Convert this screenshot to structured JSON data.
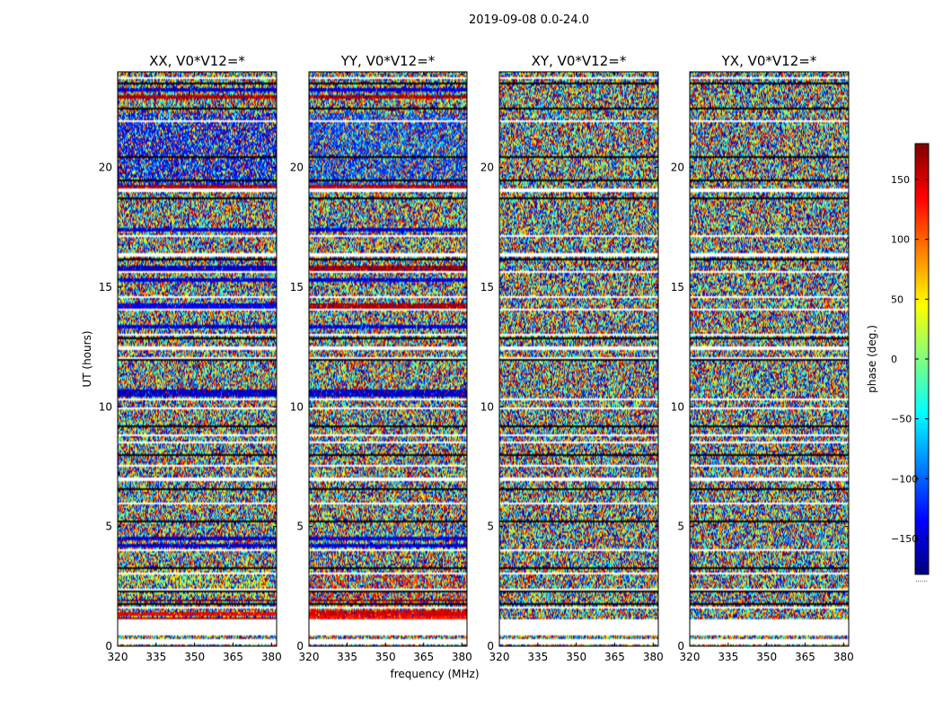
{
  "figure": {
    "suptitle": "2019-09-08 0.0-24.0",
    "xlabel": "frequency (MHz)",
    "ylabel": "UT (hours)",
    "colorbar_label": "phase (deg.)"
  },
  "chart_data": {
    "type": "heatmap",
    "description_kind": "dynamic phase spectra, frequency vs UT time",
    "x_axis": {
      "label": "frequency (MHz)",
      "range": [
        320,
        382
      ],
      "ticks": [
        320,
        335,
        350,
        365,
        380
      ]
    },
    "y_axis": {
      "label": "UT (hours)",
      "range": [
        0,
        24
      ],
      "ticks": [
        0,
        5,
        10,
        15,
        20
      ]
    },
    "colorbar": {
      "label": "phase (deg.)",
      "range": [
        -180,
        180
      ],
      "ticks": [
        -150,
        -100,
        -50,
        0,
        50,
        100,
        150
      ],
      "colormap": "jet",
      "colormap_stops": [
        "#00007f",
        "#0000ff",
        "#007fff",
        "#00ffff",
        "#7fff7f",
        "#ffff00",
        "#ff7f00",
        "#ff0000",
        "#7f0000"
      ]
    },
    "panels": [
      {
        "title": "XX, V0*V12=*",
        "flagged_bands_hours": [
          [
            1.0,
            1.1
          ],
          [
            6.9,
            7.05
          ],
          [
            8.45,
            8.55
          ],
          [
            10.25,
            10.35
          ],
          [
            12.4,
            12.5
          ],
          [
            14.0,
            14.1
          ],
          [
            16.3,
            16.45
          ],
          [
            17.1,
            17.2
          ],
          [
            18.95,
            19.1
          ]
        ],
        "coherent_bands": [
          {
            "range": [
              1.05,
              1.2
            ],
            "phase": 160
          },
          {
            "range": [
              1.3,
              1.45
            ],
            "phase": 140
          },
          {
            "range": [
              1.85,
              1.95
            ],
            "phase": 175
          },
          {
            "range": [
              4.1,
              4.3
            ],
            "phase": -150
          },
          {
            "range": [
              4.4,
              4.55
            ],
            "phase": -155
          },
          {
            "range": [
              10.45,
              10.7
            ],
            "phase": -155
          },
          {
            "range": [
              13.3,
              13.45
            ],
            "phase": -150
          },
          {
            "range": [
              14.1,
              14.3
            ],
            "phase": -140
          },
          {
            "range": [
              15.2,
              15.35
            ],
            "phase": -150
          },
          {
            "range": [
              15.7,
              15.9
            ],
            "phase": -155
          },
          {
            "range": [
              17.35,
              17.45
            ],
            "phase": -150
          },
          {
            "range": [
              19.15,
              19.3
            ],
            "phase": 165
          },
          {
            "range": [
              22.9,
              23.05
            ],
            "phase": 165
          },
          {
            "range": [
              23.2,
              23.35
            ],
            "phase": -155
          }
        ],
        "noise_bias": [
          {
            "range": [
              19.3,
              22.3
            ],
            "phase": -130,
            "strength": 0.45
          },
          {
            "range": [
              2.1,
              3.2
            ],
            "phase": 30,
            "strength": 0.2
          }
        ]
      },
      {
        "title": "YY, V0*V12=*",
        "flagged_bands_hours": [
          [
            1.0,
            1.1
          ],
          [
            6.9,
            7.05
          ],
          [
            8.45,
            8.55
          ],
          [
            10.25,
            10.35
          ],
          [
            12.4,
            12.5
          ],
          [
            14.0,
            14.1
          ],
          [
            16.3,
            16.45
          ],
          [
            17.1,
            17.2
          ],
          [
            18.95,
            19.1
          ]
        ],
        "coherent_bands": [
          {
            "range": [
              1.05,
              1.25
            ],
            "phase": 130
          },
          {
            "range": [
              1.3,
              1.5
            ],
            "phase": 150
          },
          {
            "range": [
              1.85,
              1.95
            ],
            "phase": 170
          },
          {
            "range": [
              4.1,
              4.3
            ],
            "phase": -150
          },
          {
            "range": [
              4.4,
              4.55
            ],
            "phase": -145
          },
          {
            "range": [
              10.45,
              10.7
            ],
            "phase": -155
          },
          {
            "range": [
              13.3,
              13.45
            ],
            "phase": -145
          },
          {
            "range": [
              14.1,
              14.3
            ],
            "phase": 165
          },
          {
            "range": [
              15.2,
              15.35
            ],
            "phase": -150
          },
          {
            "range": [
              15.7,
              15.9
            ],
            "phase": 170
          },
          {
            "range": [
              17.35,
              17.45
            ],
            "phase": -150
          },
          {
            "range": [
              19.15,
              19.3
            ],
            "phase": 160
          },
          {
            "range": [
              22.9,
              23.05
            ],
            "phase": 165
          },
          {
            "range": [
              23.2,
              23.35
            ],
            "phase": -150
          }
        ],
        "noise_bias": [
          {
            "range": [
              19.3,
              22.3
            ],
            "phase": -110,
            "strength": 0.4
          },
          {
            "range": [
              1.5,
              3.0
            ],
            "phase": 120,
            "strength": 0.25
          }
        ]
      },
      {
        "title": "XY, V0*V12=*",
        "flagged_bands_hours": [
          [
            1.0,
            1.1
          ],
          [
            6.9,
            7.05
          ],
          [
            8.45,
            8.55
          ],
          [
            10.25,
            10.35
          ],
          [
            12.4,
            12.5
          ],
          [
            14.0,
            14.1
          ],
          [
            16.3,
            16.45
          ],
          [
            17.1,
            17.2
          ],
          [
            18.95,
            19.1
          ]
        ],
        "coherent_bands": [],
        "noise_bias": []
      },
      {
        "title": "YX, V0*V12=*",
        "flagged_bands_hours": [
          [
            1.0,
            1.1
          ],
          [
            6.9,
            7.05
          ],
          [
            8.45,
            8.55
          ],
          [
            10.25,
            10.35
          ],
          [
            12.4,
            12.5
          ],
          [
            14.0,
            14.1
          ],
          [
            16.3,
            16.45
          ],
          [
            17.1,
            17.2
          ],
          [
            18.95,
            19.1
          ]
        ],
        "coherent_bands": [],
        "noise_bias": []
      }
    ],
    "common_flagged_gaps_hours": [
      [
        0.05,
        0.3
      ],
      [
        0.45,
        1.0
      ],
      [
        1.6,
        1.65
      ],
      [
        2.35,
        2.4
      ],
      [
        3.0,
        3.05
      ],
      [
        4.0,
        4.08
      ],
      [
        4.32,
        4.38
      ],
      [
        5.95,
        6.0
      ],
      [
        7.5,
        7.55
      ],
      [
        8.8,
        8.85
      ],
      [
        9.9,
        9.95
      ],
      [
        11.3,
        11.35
      ],
      [
        12.0,
        12.05
      ],
      [
        13.0,
        13.05
      ],
      [
        14.55,
        14.6
      ],
      [
        15.05,
        15.1
      ],
      [
        15.6,
        15.65
      ],
      [
        17.6,
        17.65
      ],
      [
        18.2,
        18.25
      ],
      [
        20.3,
        20.35
      ],
      [
        21.9,
        21.95
      ],
      [
        23.7,
        23.75
      ]
    ],
    "black_lines_hours": [
      1.75,
      2.3,
      2.55,
      3.25,
      5.2,
      6.55,
      8.0,
      9.2,
      10.05,
      11.95,
      12.85,
      13.8,
      14.85,
      16.15,
      18.7,
      19.45,
      20.45,
      22.45,
      23.5
    ]
  }
}
